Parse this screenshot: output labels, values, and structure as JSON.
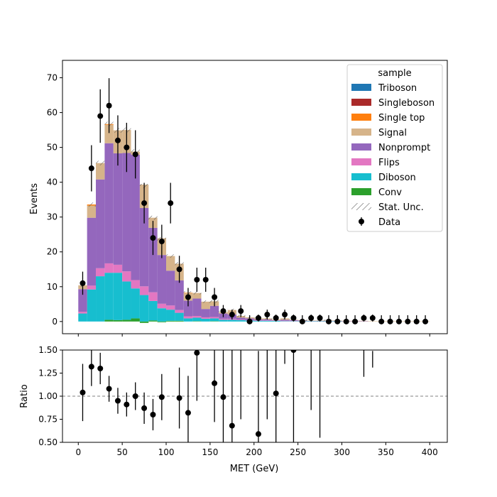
{
  "chart_data": {
    "type": "bar",
    "stacked": true,
    "x_label": "MET (GeV)",
    "upper_panel": {
      "y_label": "Events",
      "ylim": [
        -3.5,
        75
      ],
      "y_ticks": [
        0,
        10,
        20,
        30,
        40,
        50,
        60,
        70
      ],
      "legend_title": "sample",
      "legend_location": "top-right"
    },
    "lower_panel": {
      "y_label": "Ratio",
      "ylim": [
        0.5,
        1.5
      ],
      "y_ticks": [
        "0.50",
        "0.75",
        "1.00",
        "1.25",
        "1.50"
      ],
      "reference_line": 1.0
    },
    "xlim": [
      -18,
      420
    ],
    "x_ticks": [
      0,
      50,
      100,
      150,
      200,
      250,
      300,
      350,
      400
    ],
    "bin_edges": [
      0,
      10,
      20,
      30,
      40,
      50,
      60,
      70,
      80,
      90,
      100,
      110,
      120,
      130,
      140,
      150,
      160,
      170,
      180,
      190,
      200,
      210,
      220,
      230,
      240,
      250,
      260,
      270,
      280,
      290,
      300,
      310,
      320,
      330,
      340,
      350,
      360,
      370,
      380,
      390,
      400
    ],
    "series": [
      {
        "name": "Conv",
        "color": "#2ca02c",
        "values": [
          0,
          0,
          0,
          0.5,
          0.4,
          0.5,
          0.9,
          -0.4,
          0.3,
          -0.2,
          0.2,
          0.2,
          0,
          0.1,
          0,
          0.1,
          0,
          0,
          0,
          0,
          0,
          0,
          0,
          0,
          0,
          0,
          0,
          0,
          0,
          0,
          0,
          0,
          0,
          0,
          0,
          0,
          0,
          0,
          0,
          0
        ]
      },
      {
        "name": "Diboson",
        "color": "#17becf",
        "values": [
          2.3,
          9.2,
          13.0,
          13.5,
          13.6,
          11.0,
          8.6,
          7.6,
          5.6,
          3.8,
          3.2,
          2.3,
          0.9,
          1.0,
          0.8,
          0.8,
          0.5,
          0.5,
          0.4,
          0.3,
          0.2,
          0.2,
          0.2,
          0.1,
          0.1,
          0.1,
          0.1,
          0.1,
          0.1,
          0.1,
          0,
          0,
          0,
          0,
          0,
          0,
          0,
          0,
          0,
          0
        ]
      },
      {
        "name": "Flips",
        "color": "#e377c2",
        "values": [
          0.5,
          1.1,
          2.3,
          2.7,
          2.3,
          2.9,
          2.4,
          2.5,
          2.5,
          1.3,
          1.2,
          0.8,
          0.6,
          0.5,
          0.4,
          0.4,
          0.3,
          0.3,
          0.1,
          0.1,
          0.1,
          0.1,
          0.1,
          0.1,
          0.1,
          0,
          0,
          0,
          0,
          0,
          0,
          0,
          0,
          0,
          0,
          0,
          0,
          0,
          0,
          0
        ]
      },
      {
        "name": "Nonprompt",
        "color": "#9467bd",
        "values": [
          6.5,
          19.5,
          25.5,
          34.5,
          32.0,
          34.0,
          36.0,
          22.5,
          18.5,
          14.0,
          10.0,
          8.5,
          4.5,
          5.0,
          2.4,
          3.2,
          1.5,
          1.2,
          0.6,
          0.5,
          0.3,
          0.3,
          0.1,
          0.3,
          0.2,
          0.2,
          0.1,
          0.1,
          0.1,
          0.1,
          0.1,
          0.1,
          0.1,
          0,
          0,
          0,
          0,
          0,
          0,
          0
        ]
      },
      {
        "name": "Signal",
        "color": "#d6b48a",
        "values": [
          1.1,
          3.5,
          4.7,
          5.3,
          6.6,
          6.6,
          0.9,
          6.7,
          2.9,
          4.8,
          4.2,
          4.8,
          2.2,
          1.6,
          2.1,
          1.3,
          0.4,
          1.3,
          0.5,
          0.3,
          0.3,
          0.3,
          0.2,
          0.4,
          0.1,
          0.1,
          0.1,
          0.1,
          0.1,
          0.1,
          0.1,
          0.1,
          0.1,
          0.1,
          0.1,
          0.1,
          0.1,
          0.1,
          0.1,
          0.1
        ]
      },
      {
        "name": "Single top",
        "color": "#ff7f0e",
        "values": [
          0,
          0.3,
          0,
          0.2,
          0,
          0,
          0,
          0,
          0,
          0,
          0,
          0,
          0.1,
          0,
          0,
          0,
          0,
          0,
          0,
          0,
          0,
          0,
          0,
          0,
          0,
          0,
          0,
          0,
          0,
          0,
          0,
          0,
          0,
          0,
          0,
          0,
          0,
          0,
          0,
          0
        ]
      },
      {
        "name": "Singleboson",
        "color": "#aa2a2a",
        "values": [
          0,
          0,
          0,
          0,
          0,
          0,
          0,
          0,
          0,
          0,
          0,
          0,
          0,
          0,
          0,
          0,
          0,
          0,
          0,
          0,
          0,
          0,
          0,
          0,
          0,
          0,
          0,
          0,
          0,
          0,
          0,
          0,
          0,
          0,
          0,
          0,
          0,
          0,
          0,
          0
        ]
      },
      {
        "name": "Triboson",
        "color": "#1f77b4",
        "values": [
          0,
          0,
          0,
          0,
          0,
          0,
          0,
          0,
          0,
          0,
          0,
          0,
          0,
          0,
          0,
          0,
          0,
          0,
          0,
          0,
          0,
          0,
          0,
          0,
          0,
          0,
          0,
          0,
          0,
          0,
          0,
          0,
          0,
          0,
          0,
          0,
          0,
          0,
          0,
          0
        ]
      }
    ],
    "stat_unc_label": "Stat. Unc.",
    "data": {
      "name": "Data",
      "x": [
        5,
        15,
        25,
        35,
        45,
        55,
        65,
        75,
        85,
        95,
        105,
        115,
        125,
        135,
        145,
        155,
        165,
        175,
        185,
        195,
        205,
        215,
        225,
        235,
        245,
        255,
        265,
        275,
        285,
        295,
        305,
        315,
        325,
        335,
        345,
        355,
        365,
        375,
        385,
        395
      ],
      "y": [
        11,
        44,
        59,
        62,
        52,
        50,
        48,
        34,
        24,
        23,
        34,
        15,
        7,
        12,
        12,
        7,
        3,
        2,
        3,
        0,
        1,
        2,
        1,
        2,
        1,
        0,
        1,
        1,
        0,
        0,
        0,
        0,
        1,
        1,
        0,
        0,
        0,
        0,
        0,
        0
      ]
    },
    "ratio": {
      "x": [
        5,
        15,
        25,
        35,
        45,
        55,
        65,
        75,
        85,
        95,
        115,
        125,
        135,
        155,
        165,
        175,
        205,
        225,
        245
      ],
      "y": [
        1.04,
        1.32,
        1.3,
        1.08,
        0.95,
        0.91,
        1.0,
        0.87,
        0.8,
        0.99,
        0.98,
        0.82,
        1.47,
        1.14,
        0.99,
        0.68,
        0.59,
        1.03,
        1.5
      ],
      "err": [
        0.31,
        0.21,
        0.17,
        0.14,
        0.14,
        0.13,
        0.15,
        0.17,
        0.17,
        0.25,
        0.33,
        0.4,
        0.52,
        0.42,
        0.9,
        0.9,
        0.9,
        0.9,
        1.5
      ],
      "error_only": [
        {
          "x": 185,
          "y": 1.35,
          "err": 0.6
        },
        {
          "x": 215,
          "y": 1.3,
          "err": 0.55
        },
        {
          "x": 235,
          "y": 1.55,
          "err": 0.2
        },
        {
          "x": 265,
          "y": 1.4,
          "err": 0.55
        },
        {
          "x": 275,
          "y": 1.4,
          "err": 0.85
        },
        {
          "x": 325,
          "y": 1.4,
          "err": 0.19
        },
        {
          "x": 335,
          "y": 1.4,
          "err": 0.09
        }
      ]
    }
  }
}
